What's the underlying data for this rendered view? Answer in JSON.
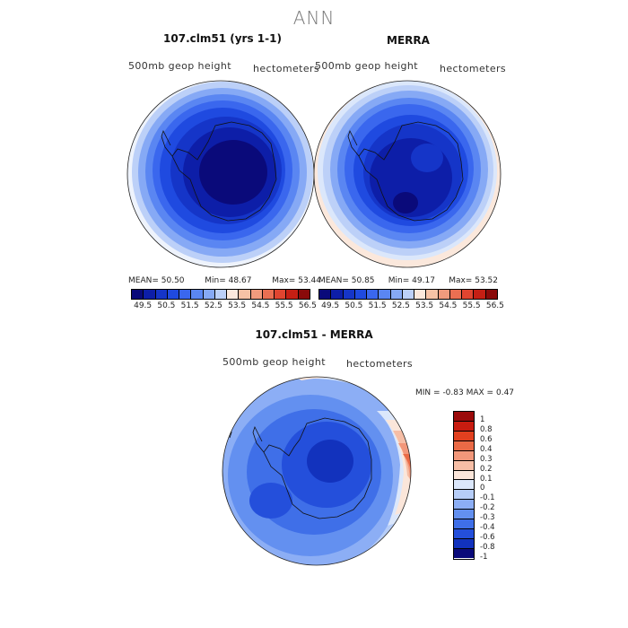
{
  "title": "ANN",
  "panels": [
    {
      "title": "107.clm51 (yrs 1-1)",
      "left_label": "500mb geop height",
      "right_label": "hectometers",
      "stats": {
        "mean_label": "MEAN=",
        "mean": "50.50",
        "min_label": "Min=",
        "min": "48.67",
        "max_label": "Max=",
        "max": "53.44"
      }
    },
    {
      "title": "MERRA",
      "left_label": "500mb geop height",
      "right_label": "hectometers",
      "stats": {
        "mean_label": "MEAN=",
        "mean": "50.85",
        "min_label": "Min=",
        "min": "49.17",
        "max_label": "Max=",
        "max": "53.52"
      }
    }
  ],
  "top_colorbar": {
    "colors": [
      "#0a0a7a",
      "#0d1ea8",
      "#1535c8",
      "#1f4ae0",
      "#3a67ee",
      "#5a86f2",
      "#86a9f5",
      "#bcd0f8",
      "#fbe8dc",
      "#f6c2a6",
      "#f19b7d",
      "#ea6f52",
      "#e04530",
      "#c51f14",
      "#8a0a0a"
    ],
    "ticks": [
      "49.5",
      "50.5",
      "51.5",
      "52.5",
      "53.5",
      "54.5",
      "55.5",
      "56.5"
    ]
  },
  "diff_panel": {
    "title": "107.clm51 - MERRA",
    "left_label": "500mb geop height",
    "right_label": "hectometers",
    "stats": {
      "min_label": "MIN =",
      "min": "-0.83",
      "max_label": "MAX =",
      "max": "0.47"
    }
  },
  "diff_colorbar": {
    "colors": [
      "#9b0a0a",
      "#c81c10",
      "#e1401f",
      "#ea6a46",
      "#f2977a",
      "#f6bea6",
      "#fbe6da",
      "#dbe7fb",
      "#b6cdf8",
      "#8caef5",
      "#6390f0",
      "#3f6fe8",
      "#244fdb",
      "#1232bd",
      "#0a0a7a"
    ],
    "ticks": [
      "1",
      "0.8",
      "0.6",
      "0.4",
      "0.3",
      "0.2",
      "0.1",
      "0",
      "-0.1",
      "-0.2",
      "-0.3",
      "-0.4",
      "-0.6",
      "-0.8",
      "-1"
    ]
  }
}
